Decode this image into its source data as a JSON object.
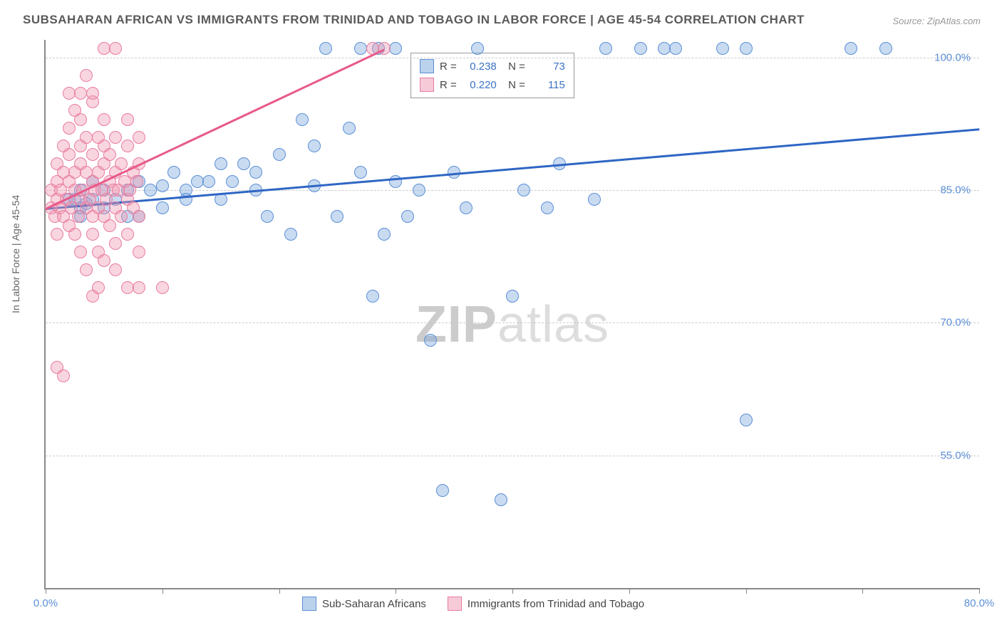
{
  "title": "SUBSAHARAN AFRICAN VS IMMIGRANTS FROM TRINIDAD AND TOBAGO IN LABOR FORCE | AGE 45-54 CORRELATION CHART",
  "source": "Source: ZipAtlas.com",
  "ylabel": "In Labor Force | Age 45-54",
  "watermark_bold": "ZIP",
  "watermark_light": "atlas",
  "chart": {
    "type": "scatter",
    "xlim": [
      0,
      80
    ],
    "ylim": [
      40,
      102
    ],
    "xtick_positions": [
      0,
      10,
      20,
      30,
      40,
      50,
      60,
      70,
      80
    ],
    "xtick_labels": {
      "0": "0.0%",
      "80": "80.0%"
    },
    "ytick_positions": [
      55,
      70,
      85,
      100
    ],
    "ytick_labels": [
      "55.0%",
      "70.0%",
      "85.0%",
      "100.0%"
    ],
    "grid_color": "#cccccc",
    "background_color": "#ffffff",
    "series": [
      {
        "name": "Sub-Saharan Africans",
        "color_fill": "rgba(120,165,220,0.4)",
        "color_stroke": "#5b8fd6",
        "marker_class": "blue",
        "R": "0.238",
        "N": "73",
        "trend": {
          "x1": 0,
          "y1": 83,
          "x2": 80,
          "y2": 92,
          "color": "#2f66c4",
          "width": 2.5
        },
        "points": [
          [
            2,
            84
          ],
          [
            2.5,
            84
          ],
          [
            3,
            83
          ],
          [
            3,
            85
          ],
          [
            3,
            82
          ],
          [
            3.5,
            83.5
          ],
          [
            4,
            84
          ],
          [
            4,
            86
          ],
          [
            5,
            85
          ],
          [
            5,
            83
          ],
          [
            6,
            84
          ],
          [
            7,
            82
          ],
          [
            7,
            85
          ],
          [
            8,
            82
          ],
          [
            8,
            86
          ],
          [
            9,
            85
          ],
          [
            10,
            85.5
          ],
          [
            10,
            83
          ],
          [
            11,
            87
          ],
          [
            12,
            85
          ],
          [
            12,
            84
          ],
          [
            13,
            86
          ],
          [
            14,
            86
          ],
          [
            15,
            88
          ],
          [
            15,
            84
          ],
          [
            16,
            86
          ],
          [
            17,
            88
          ],
          [
            18,
            85
          ],
          [
            18,
            87
          ],
          [
            19,
            82
          ],
          [
            20,
            89
          ],
          [
            21,
            80
          ],
          [
            22,
            93
          ],
          [
            23,
            85.5
          ],
          [
            23,
            90
          ],
          [
            24,
            101
          ],
          [
            25,
            82
          ],
          [
            26,
            92
          ],
          [
            27,
            87
          ],
          [
            27,
            101
          ],
          [
            28,
            73
          ],
          [
            28.5,
            101
          ],
          [
            29,
            80
          ],
          [
            30,
            86
          ],
          [
            30,
            101
          ],
          [
            31,
            82
          ],
          [
            32,
            85
          ],
          [
            33,
            68
          ],
          [
            34,
            51
          ],
          [
            35,
            87
          ],
          [
            36,
            83
          ],
          [
            37,
            101
          ],
          [
            39,
            50
          ],
          [
            40,
            73
          ],
          [
            41,
            85
          ],
          [
            43,
            83
          ],
          [
            44,
            88
          ],
          [
            47,
            84
          ],
          [
            48,
            101
          ],
          [
            51,
            101
          ],
          [
            53,
            101
          ],
          [
            54,
            101
          ],
          [
            58,
            101
          ],
          [
            60,
            101
          ],
          [
            60,
            59
          ],
          [
            69,
            101
          ],
          [
            72,
            101
          ]
        ]
      },
      {
        "name": "Immigrants from Trinidad and Tobago",
        "color_fill": "rgba(240,150,175,0.4)",
        "color_stroke": "#e87ca0",
        "marker_class": "pink",
        "R": "0.220",
        "N": "115",
        "trend": {
          "x1": 0,
          "y1": 83,
          "x2": 29,
          "y2": 101,
          "color": "#e85a8a",
          "width": 2.5
        },
        "points": [
          [
            0.5,
            83
          ],
          [
            0.5,
            85
          ],
          [
            0.8,
            82
          ],
          [
            1,
            84
          ],
          [
            1,
            86
          ],
          [
            1,
            88
          ],
          [
            1,
            80
          ],
          [
            1.2,
            83
          ],
          [
            1.3,
            85
          ],
          [
            1.5,
            87
          ],
          [
            1.5,
            82
          ],
          [
            1.5,
            90
          ],
          [
            1.8,
            84
          ],
          [
            2,
            86
          ],
          [
            2,
            81
          ],
          [
            2,
            89
          ],
          [
            2,
            92
          ],
          [
            2.2,
            83
          ],
          [
            2.5,
            85
          ],
          [
            2.5,
            87
          ],
          [
            2.5,
            80
          ],
          [
            2.5,
            94
          ],
          [
            2.8,
            82
          ],
          [
            3,
            84
          ],
          [
            3,
            88
          ],
          [
            3,
            90
          ],
          [
            3,
            78
          ],
          [
            3,
            93
          ],
          [
            3.2,
            85
          ],
          [
            3.5,
            83
          ],
          [
            3.5,
            87
          ],
          [
            3.5,
            91
          ],
          [
            3.5,
            76
          ],
          [
            3.8,
            84
          ],
          [
            4,
            86
          ],
          [
            4,
            82
          ],
          [
            4,
            89
          ],
          [
            4,
            80
          ],
          [
            4,
            95
          ],
          [
            4.2,
            85
          ],
          [
            4.5,
            87
          ],
          [
            4.5,
            83
          ],
          [
            4.5,
            91
          ],
          [
            4.5,
            78
          ],
          [
            4.8,
            85
          ],
          [
            5,
            88
          ],
          [
            5,
            82
          ],
          [
            5,
            90
          ],
          [
            5,
            93
          ],
          [
            5,
            101
          ],
          [
            5.2,
            84
          ],
          [
            5.5,
            86
          ],
          [
            5.5,
            81
          ],
          [
            5.5,
            89
          ],
          [
            5.8,
            85
          ],
          [
            6,
            87
          ],
          [
            6,
            83
          ],
          [
            6,
            91
          ],
          [
            6,
            79
          ],
          [
            6,
            101
          ],
          [
            6.2,
            85
          ],
          [
            6.5,
            88
          ],
          [
            6.5,
            82
          ],
          [
            6.8,
            86
          ],
          [
            7,
            84
          ],
          [
            7,
            90
          ],
          [
            7,
            80
          ],
          [
            7,
            93
          ],
          [
            7.2,
            85
          ],
          [
            7.5,
            87
          ],
          [
            7.5,
            83
          ],
          [
            7.8,
            86
          ],
          [
            8,
            88
          ],
          [
            8,
            82
          ],
          [
            8,
            91
          ],
          [
            8,
            78
          ],
          [
            1,
            65
          ],
          [
            1.5,
            64
          ],
          [
            4,
            73
          ],
          [
            4.5,
            74
          ],
          [
            5,
            77
          ],
          [
            6,
            76
          ],
          [
            7,
            74
          ],
          [
            8,
            74
          ],
          [
            10,
            74
          ],
          [
            2,
            96
          ],
          [
            3,
            96
          ],
          [
            4,
            96
          ],
          [
            3.5,
            98
          ],
          [
            28,
            101
          ],
          [
            29,
            101
          ]
        ]
      }
    ]
  },
  "bottom_legend": [
    {
      "swatch": "blue",
      "label": "Sub-Saharan Africans"
    },
    {
      "swatch": "pink",
      "label": "Immigrants from Trinidad and Tobago"
    }
  ]
}
